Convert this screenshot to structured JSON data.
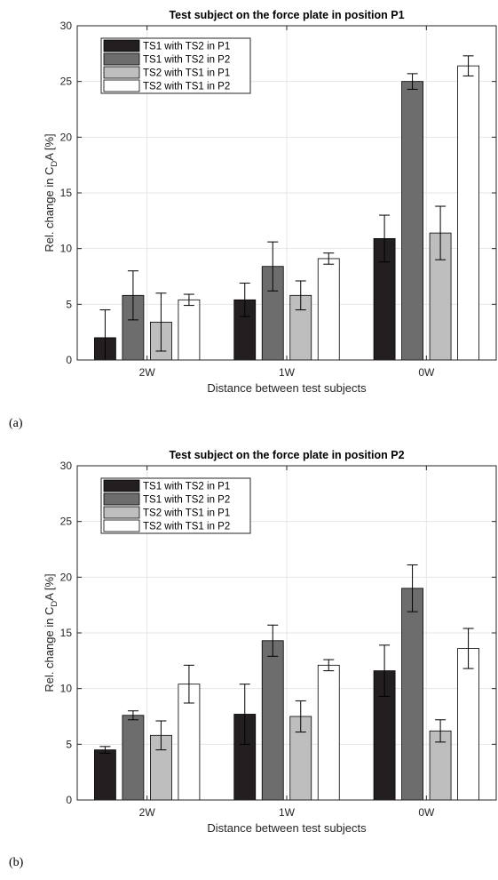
{
  "colors": {
    "series": [
      "#231f20",
      "#6d6d6d",
      "#bebebe",
      "#ffffff"
    ],
    "grid": "#e6e6e6",
    "axis": "#262626"
  },
  "chart_data": [
    {
      "type": "bar",
      "panel_label": "(a)",
      "title": "Test subject on the force plate in position P1",
      "xlabel": "Distance between test subjects",
      "ylabel": "Rel. change in C",
      "ylabel_sub": "D",
      "ylabel_tail": "A [%]",
      "ylim": [
        0,
        30
      ],
      "yticks": [
        0,
        5,
        10,
        15,
        20,
        25,
        30
      ],
      "grid": true,
      "legend_position": "top-left",
      "categories": [
        "2W",
        "1W",
        "0W"
      ],
      "series": [
        {
          "name": "TS1 with TS2 in P1",
          "values": [
            2.0,
            5.4,
            10.9
          ],
          "errors": [
            2.5,
            1.5,
            2.1
          ]
        },
        {
          "name": "TS1 with TS2 in P2",
          "values": [
            5.8,
            8.4,
            25.0
          ],
          "errors": [
            2.2,
            2.2,
            0.7
          ]
        },
        {
          "name": "TS2 with TS1 in P1",
          "values": [
            3.4,
            5.8,
            11.4
          ],
          "errors": [
            2.6,
            1.3,
            2.4
          ]
        },
        {
          "name": "TS2 with TS1 in P2",
          "values": [
            5.4,
            9.1,
            26.4
          ],
          "errors": [
            0.5,
            0.5,
            0.9
          ]
        }
      ]
    },
    {
      "type": "bar",
      "panel_label": "(b)",
      "title": "Test subject on the force plate in position P2",
      "xlabel": "Distance between test subjects",
      "ylabel": "Rel. change in C",
      "ylabel_sub": "D",
      "ylabel_tail": "A [%]",
      "ylim": [
        0,
        30
      ],
      "yticks": [
        0,
        5,
        10,
        15,
        20,
        25,
        30
      ],
      "grid": true,
      "legend_position": "top-left",
      "categories": [
        "2W",
        "1W",
        "0W"
      ],
      "series": [
        {
          "name": "TS1 with TS2 in P1",
          "values": [
            4.5,
            7.7,
            11.6
          ],
          "errors": [
            0.3,
            2.7,
            2.3
          ]
        },
        {
          "name": "TS1 with TS2 in P2",
          "values": [
            7.6,
            14.3,
            19.0
          ],
          "errors": [
            0.4,
            1.4,
            2.1
          ]
        },
        {
          "name": "TS2 with TS1 in P1",
          "values": [
            5.8,
            7.5,
            6.2
          ],
          "errors": [
            1.3,
            1.4,
            1.0
          ]
        },
        {
          "name": "TS2 with TS1 in P2",
          "values": [
            10.4,
            12.1,
            13.6
          ],
          "errors": [
            1.7,
            0.5,
            1.8
          ]
        }
      ]
    }
  ]
}
